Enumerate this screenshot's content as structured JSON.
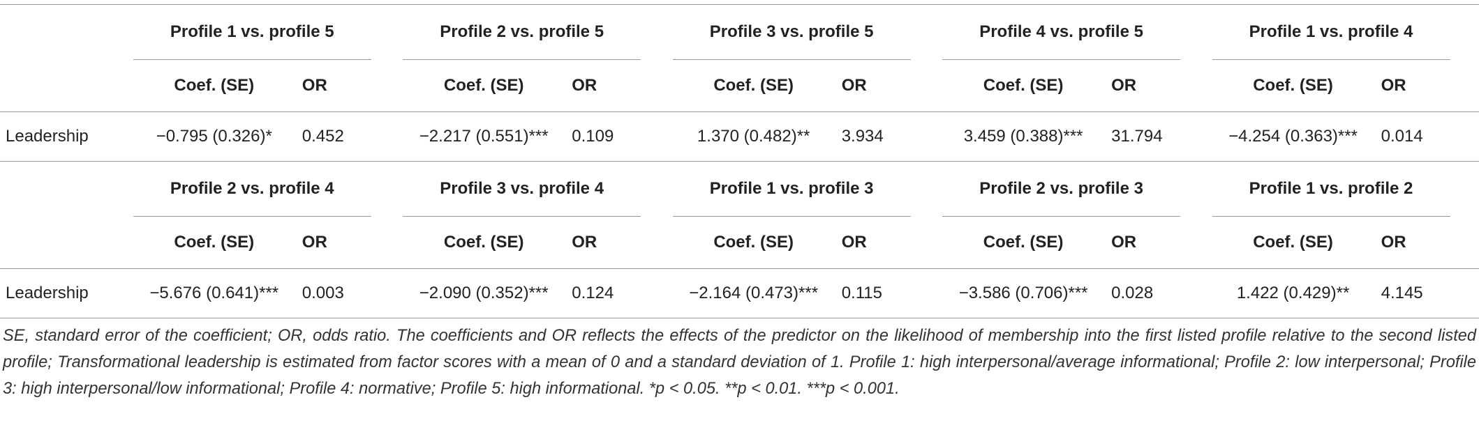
{
  "table": {
    "coef_header": "Coef. (SE)",
    "or_header": "OR",
    "blocks": [
      {
        "comparisons": [
          "Profile 1 vs. profile 5",
          "Profile 2 vs. profile 5",
          "Profile 3 vs. profile 5",
          "Profile 4 vs. profile 5",
          "Profile 1 vs. profile 4"
        ],
        "row_label": "Leadership",
        "cells": [
          {
            "coef": "−0.795 (0.326)*",
            "or": "0.452"
          },
          {
            "coef": "−2.217 (0.551)***",
            "or": "0.109"
          },
          {
            "coef": "1.370 (0.482)**",
            "or": "3.934"
          },
          {
            "coef": "3.459 (0.388)***",
            "or": "31.794"
          },
          {
            "coef": "−4.254 (0.363)***",
            "or": "0.014"
          }
        ]
      },
      {
        "comparisons": [
          "Profile 2 vs. profile 4",
          "Profile 3 vs. profile 4",
          "Profile 1 vs. profile 3",
          "Profile 2 vs. profile 3",
          "Profile 1 vs. profile 2"
        ],
        "row_label": "Leadership",
        "cells": [
          {
            "coef": "−5.676 (0.641)***",
            "or": "0.003"
          },
          {
            "coef": "−2.090 (0.352)***",
            "or": "0.124"
          },
          {
            "coef": "−2.164 (0.473)***",
            "or": "0.115"
          },
          {
            "coef": "−3.586 (0.706)***",
            "or": "0.028"
          },
          {
            "coef": "1.422 (0.429)**",
            "or": "4.145"
          }
        ]
      }
    ],
    "footnote": "SE, standard error of the coefficient; OR, odds ratio. The coefficients and OR reflects the effects of the predictor on the likelihood of membership into the first listed profile relative to the second listed profile; Transformational leadership is estimated from factor scores with a mean of 0 and a standard deviation of 1. Profile 1: high interpersonal/average informational; Profile 2: low interpersonal; Profile 3: high interpersonal/low informational; Profile 4: normative; Profile 5: high informational. *p < 0.05. **p < 0.01. ***p < 0.001."
  }
}
